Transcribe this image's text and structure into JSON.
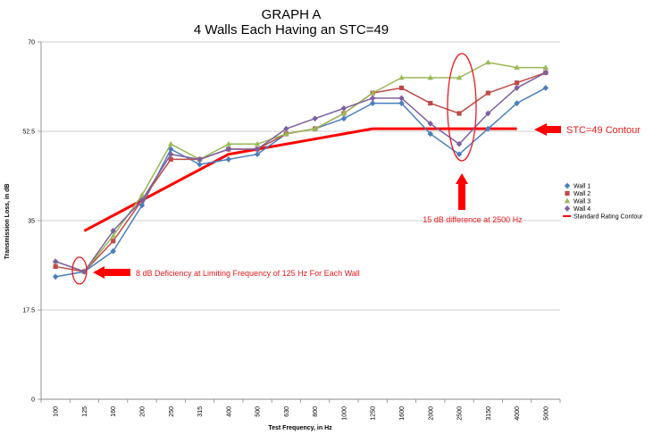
{
  "chart_data": {
    "type": "line",
    "title": "GRAPH A",
    "subtitle": "4 Walls Each Having an STC=49",
    "xlabel": "Test Frequency, in Hz",
    "ylabel": "Transmission Loss, in dB",
    "ylim": [
      0,
      70
    ],
    "yticks": [
      "0",
      "17.5",
      "35",
      "52.5",
      "70"
    ],
    "ytick_values": [
      0,
      17.5,
      35,
      52.5,
      70
    ],
    "categories": [
      "100",
      "125",
      "160",
      "200",
      "250",
      "315",
      "400",
      "500",
      "630",
      "800",
      "1000",
      "1250",
      "1600",
      "2000",
      "2500",
      "3150",
      "4000",
      "5000"
    ],
    "grid": "horizontal",
    "legend_position": "right",
    "series": [
      {
        "name": "Wall 1",
        "color": "#4a7ebb",
        "marker": "diamond",
        "values": [
          24,
          25,
          29,
          38,
          49,
          46,
          47,
          48,
          52,
          53,
          55,
          58,
          58,
          52,
          48,
          53,
          58,
          61
        ]
      },
      {
        "name": "Wall 2",
        "color": "#be4b48",
        "marker": "square",
        "values": [
          26,
          25,
          31,
          39,
          47,
          47,
          49,
          49,
          52,
          53,
          56,
          60,
          61,
          58,
          56,
          60,
          62,
          64
        ]
      },
      {
        "name": "Wall 3",
        "color": "#98b954",
        "marker": "triangle",
        "values": [
          27,
          25,
          32,
          40,
          50,
          47,
          50,
          50,
          52,
          53,
          56,
          60,
          63,
          63,
          63,
          66,
          65,
          65
        ]
      },
      {
        "name": "Wall 4",
        "color": "#7d60a0",
        "marker": "diamond",
        "values": [
          27,
          25,
          33,
          39,
          48,
          47,
          49,
          49,
          53,
          55,
          57,
          59,
          59,
          54,
          50,
          56,
          61,
          64
        ]
      }
    ],
    "contour": {
      "name": "Standard Rating Contour",
      "color": "#ff0000",
      "points": [
        [
          125,
          33
        ],
        [
          400,
          48
        ],
        [
          1250,
          53
        ],
        [
          4000,
          53
        ]
      ]
    },
    "annotations": [
      {
        "id": "stc",
        "text": "STC=49 Contour"
      },
      {
        "id": "diff",
        "text": "15 dB difference at 2500 Hz"
      },
      {
        "id": "deficiency",
        "text": "8 dB Deficiency at Limiting Frequency of 125 Hz For Each Wall"
      }
    ]
  }
}
